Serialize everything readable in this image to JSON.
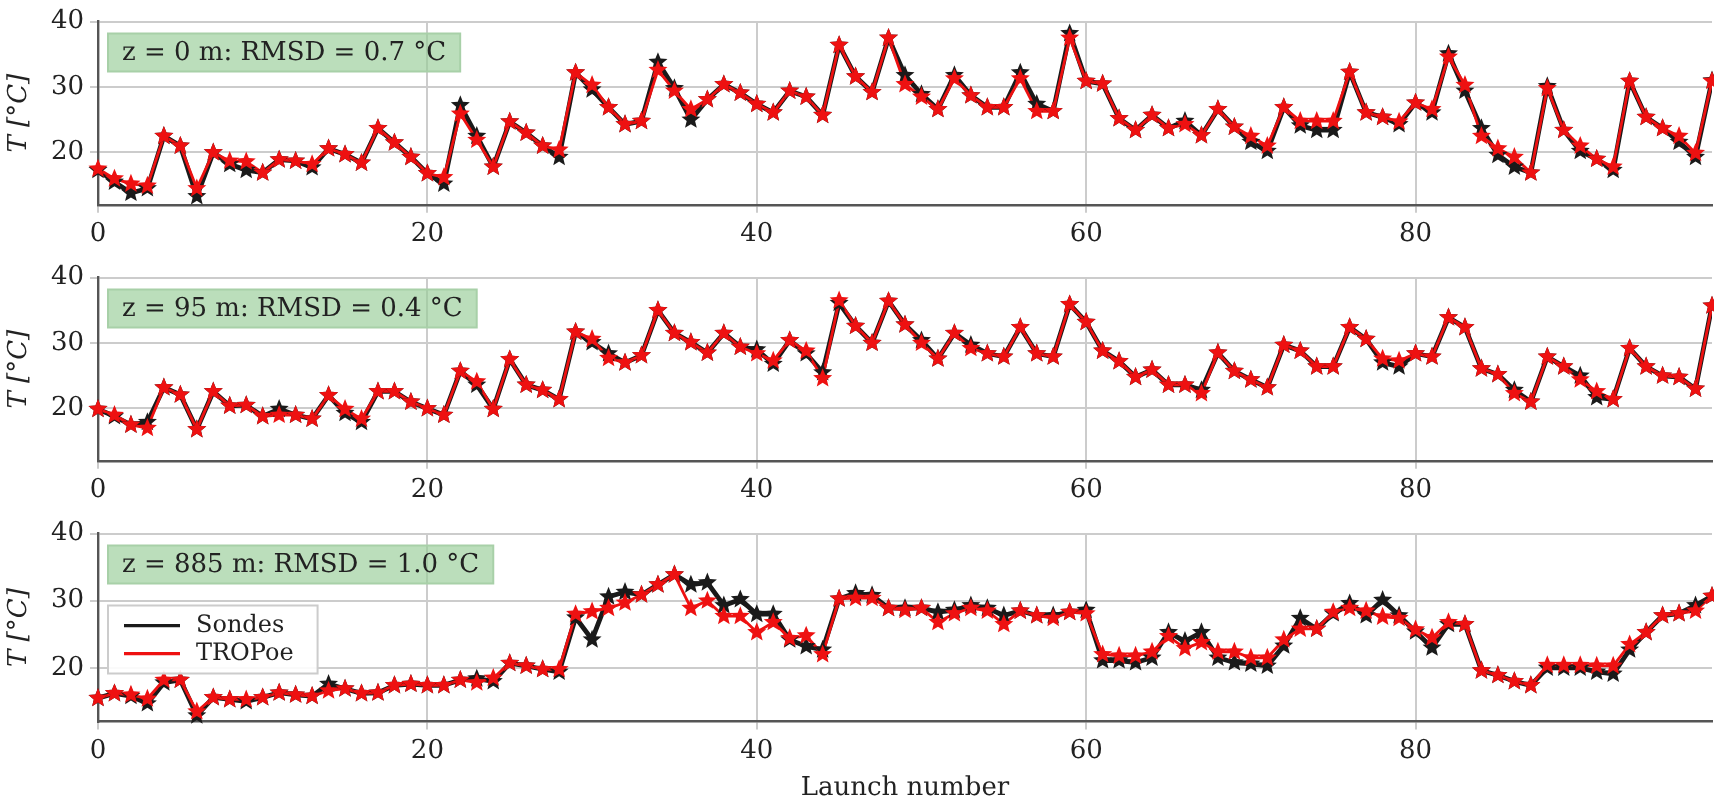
{
  "chart_data": [
    {
      "type": "line",
      "annotations": [
        "z = 0 m: RMSD = 0.7 °C"
      ],
      "ylabel": "T [°C]",
      "xlim": [
        0,
        98
      ],
      "ylim": [
        12,
        40
      ],
      "xticks": [
        0,
        20,
        40,
        60,
        80
      ],
      "yticks": [
        20,
        30,
        40
      ],
      "grid": true,
      "marker": "star",
      "line_style": "solid",
      "x": [
        0,
        1,
        2,
        3,
        4,
        5,
        6,
        7,
        8,
        9,
        10,
        11,
        12,
        13,
        14,
        15,
        16,
        17,
        18,
        19,
        20,
        21,
        22,
        23,
        24,
        25,
        26,
        27,
        28,
        29,
        30,
        31,
        32,
        33,
        34,
        35,
        36,
        37,
        38,
        39,
        40,
        41,
        42,
        43,
        44,
        45,
        46,
        47,
        48,
        49,
        50,
        51,
        52,
        53,
        54,
        55,
        56,
        57,
        58,
        59,
        60,
        61,
        62,
        63,
        64,
        65,
        66,
        67,
        68,
        69,
        70,
        71,
        72,
        73,
        74,
        75,
        76,
        77,
        78,
        79,
        80,
        81,
        82,
        83,
        84,
        85,
        86,
        87,
        88,
        89,
        90,
        91,
        92,
        93,
        94,
        95,
        96,
        97,
        98
      ],
      "series": [
        {
          "color": "#1a1a1a",
          "values": [
            17.3,
            15.5,
            13.8,
            14.5,
            22.5,
            21,
            13.3,
            20,
            18.2,
            17.3,
            16.9,
            18.9,
            18.7,
            17.7,
            20.6,
            19.7,
            18.4,
            23.7,
            21.5,
            19.3,
            16.8,
            15.2,
            27.2,
            22.5,
            17.8,
            24.7,
            23,
            21,
            19.3,
            32.2,
            29.6,
            26.9,
            24.3,
            24.8,
            33.8,
            29.8,
            25,
            28.1,
            30.4,
            29.1,
            27.4,
            26.1,
            29.4,
            28.5,
            25.7,
            36.4,
            31.6,
            29.2,
            37.5,
            31.8,
            28.9,
            26.6,
            31.8,
            28.7,
            26.9,
            26.9,
            32.2,
            27.4,
            26.3,
            38.2,
            30.9,
            30.5,
            25.2,
            23.4,
            25.7,
            23.7,
            24.8,
            22.6,
            26.6,
            23.9,
            21.6,
            20.2,
            26.9,
            24.1,
            23.4,
            23.4,
            32.3,
            26.1,
            25.4,
            24.3,
            27.6,
            26.1,
            35.1,
            29.4,
            23.7,
            19.6,
            17.8,
            16.9,
            30.1,
            23.4,
            20.2,
            19,
            17.3,
            30.9,
            25.4,
            23.7,
            21.6,
            19.3,
            31
          ]
        },
        {
          "color": "#ee1111",
          "values": [
            17.5,
            16.0,
            15.2,
            14.9,
            22.5,
            21,
            14.5,
            20,
            18.7,
            18.6,
            16.9,
            18.9,
            18.7,
            18.2,
            20.6,
            19.7,
            18.4,
            23.7,
            21.5,
            19.3,
            16.8,
            16.2,
            25.9,
            21.9,
            17.8,
            24.7,
            23,
            21,
            20.4,
            32.2,
            30.3,
            26.9,
            24.3,
            24.8,
            32.6,
            29.4,
            26.6,
            28.1,
            30.4,
            29.1,
            27.4,
            26.1,
            29.4,
            28.5,
            25.7,
            36.4,
            31.6,
            29.2,
            37.5,
            30.4,
            28.5,
            26.6,
            31.3,
            28.7,
            26.9,
            26.9,
            31.3,
            26.3,
            26.3,
            37.5,
            30.9,
            30.5,
            25.2,
            23.4,
            25.7,
            23.7,
            24.3,
            22.6,
            26.6,
            23.9,
            22.5,
            21,
            26.9,
            24.8,
            24.8,
            24.8,
            32.3,
            26.1,
            25.4,
            24.7,
            27.6,
            26.6,
            34.6,
            30.3,
            22.5,
            20.6,
            19.3,
            16.9,
            29.8,
            23.4,
            21,
            19,
            17.8,
            30.9,
            25.4,
            23.7,
            22.5,
            19.9,
            30.9
          ]
        }
      ]
    },
    {
      "type": "line",
      "annotations": [
        "z = 95 m: RMSD = 0.4 °C"
      ],
      "ylabel": "T [°C]",
      "xlim": [
        0,
        98
      ],
      "ylim": [
        12,
        40
      ],
      "xticks": [
        0,
        20,
        40,
        60,
        80
      ],
      "yticks": [
        20,
        30,
        40
      ],
      "grid": true,
      "marker": "star",
      "line_style": "solid",
      "x": [
        0,
        1,
        2,
        3,
        4,
        5,
        6,
        7,
        8,
        9,
        10,
        11,
        12,
        13,
        14,
        15,
        16,
        17,
        18,
        19,
        20,
        21,
        22,
        23,
        24,
        25,
        26,
        27,
        28,
        29,
        30,
        31,
        32,
        33,
        34,
        35,
        36,
        37,
        38,
        39,
        40,
        41,
        42,
        43,
        44,
        45,
        46,
        47,
        48,
        49,
        50,
        51,
        52,
        53,
        54,
        55,
        56,
        57,
        58,
        59,
        60,
        61,
        62,
        63,
        64,
        65,
        66,
        67,
        68,
        69,
        70,
        71,
        72,
        73,
        74,
        75,
        76,
        77,
        78,
        79,
        80,
        81,
        82,
        83,
        84,
        85,
        86,
        87,
        88,
        89,
        90,
        91,
        92,
        93,
        94,
        95,
        96,
        97,
        98
      ],
      "series": [
        {
          "color": "#1a1a1a",
          "values": [
            19.9,
            18.8,
            17.5,
            17.9,
            23.2,
            22.1,
            16.8,
            22.6,
            20.4,
            20.5,
            18.8,
            19.9,
            19,
            18.4,
            22,
            19.3,
            17.9,
            22.6,
            22.6,
            21,
            20,
            19,
            25.7,
            23.6,
            19.9,
            27.5,
            23.6,
            22.8,
            21.4,
            31.7,
            30.1,
            28.4,
            27,
            28.1,
            35,
            31.5,
            30.1,
            28.5,
            31.5,
            29.4,
            29,
            26.8,
            30.4,
            28.4,
            25.5,
            36.1,
            32.6,
            30,
            36.4,
            32.8,
            30.4,
            27.6,
            31.5,
            29.7,
            28.4,
            27.9,
            32.4,
            28.4,
            27.9,
            35.9,
            33.2,
            28.8,
            27.2,
            24.8,
            25.9,
            23.6,
            23.6,
            22.8,
            28.5,
            25.7,
            24.4,
            23.2,
            29.7,
            28.8,
            26.4,
            26.4,
            32.4,
            30.6,
            27,
            26.4,
            28.4,
            27.9,
            33.9,
            32.4,
            26.1,
            25.2,
            22.8,
            21,
            27.9,
            26.4,
            25,
            21.7,
            21.4,
            29.2,
            26.4,
            25,
            24.8,
            23,
            35.7
          ]
        },
        {
          "color": "#ee1111",
          "values": [
            19.9,
            19,
            17.5,
            17,
            23.2,
            22.1,
            16.8,
            22.6,
            20.4,
            20.5,
            18.8,
            19,
            19,
            18.4,
            22,
            19.9,
            18.4,
            22.6,
            22.6,
            21,
            20,
            19,
            25.7,
            24.1,
            19.9,
            27.5,
            23.6,
            22.8,
            21.4,
            31.7,
            30.6,
            27.7,
            27,
            28.1,
            35,
            31.5,
            30.1,
            28.5,
            31.5,
            29.4,
            28.4,
            27.3,
            30.4,
            28.8,
            24.6,
            36.5,
            32.6,
            30,
            36.4,
            32.8,
            30,
            27.6,
            31.5,
            29.2,
            28.4,
            27.9,
            32.4,
            28.4,
            27.9,
            35.9,
            33.2,
            28.8,
            27.2,
            24.8,
            25.9,
            23.6,
            23.6,
            22.3,
            28.5,
            25.7,
            24.4,
            23.2,
            29.7,
            28.8,
            26.4,
            26.4,
            32.4,
            30.6,
            27.6,
            27.3,
            28.4,
            27.9,
            33.9,
            32.4,
            26.1,
            25.2,
            22.3,
            21,
            27.9,
            26.4,
            24.4,
            22.6,
            21.4,
            29.2,
            26.4,
            25,
            24.8,
            23,
            35.7
          ]
        }
      ]
    },
    {
      "type": "line",
      "annotations": [
        "z = 885 m: RMSD = 1.0 °C"
      ],
      "ylabel": "T [°C]",
      "xlabel": "Launch number",
      "xlim": [
        0,
        98
      ],
      "ylim": [
        12,
        40
      ],
      "xticks": [
        0,
        20,
        40,
        60,
        80
      ],
      "yticks": [
        20,
        30,
        40
      ],
      "grid": true,
      "marker": "star",
      "line_style": "solid",
      "legend": "left",
      "x": [
        0,
        1,
        2,
        3,
        4,
        5,
        6,
        7,
        8,
        9,
        10,
        11,
        12,
        13,
        14,
        15,
        16,
        17,
        18,
        19,
        20,
        21,
        22,
        23,
        24,
        25,
        26,
        27,
        28,
        29,
        30,
        31,
        32,
        33,
        34,
        35,
        36,
        37,
        38,
        39,
        40,
        41,
        42,
        43,
        44,
        45,
        46,
        47,
        48,
        49,
        50,
        51,
        52,
        53,
        54,
        55,
        56,
        57,
        58,
        59,
        60,
        61,
        62,
        63,
        64,
        65,
        66,
        67,
        68,
        69,
        70,
        71,
        72,
        73,
        74,
        75,
        76,
        77,
        78,
        79,
        80,
        81,
        82,
        83,
        84,
        85,
        86,
        87,
        88,
        89,
        90,
        91,
        92,
        93,
        94,
        95,
        96,
        97,
        98
      ],
      "series": [
        {
          "name": "Sondes",
          "color": "#1a1a1a",
          "values": [
            15.5,
            16.2,
            15.8,
            14.7,
            17.8,
            18.2,
            12.9,
            15.6,
            15.3,
            15,
            15.6,
            16.3,
            16,
            15.8,
            17.6,
            16.9,
            16.2,
            16.3,
            17.4,
            17.6,
            17.4,
            17.4,
            18.2,
            18.4,
            18,
            20.7,
            20.3,
            19.8,
            19.4,
            27.5,
            24.2,
            30.6,
            31.3,
            30.9,
            32.4,
            33.9,
            32.4,
            32.7,
            29.3,
            30.2,
            28,
            28,
            24.2,
            23.2,
            22.7,
            30.3,
            31.1,
            30.8,
            28.9,
            28.9,
            28.9,
            28.3,
            28.6,
            29.3,
            28.9,
            27.8,
            28.5,
            27.8,
            27.8,
            28.3,
            28.6,
            21.1,
            21.1,
            20.8,
            21.5,
            25.3,
            24,
            25.3,
            21.5,
            20.8,
            20.6,
            20.3,
            23.3,
            27.4,
            25.8,
            28.1,
            29.6,
            27.8,
            30.1,
            27.8,
            25.4,
            23,
            26.5,
            26.5,
            19.6,
            18.9,
            18,
            17.4,
            20,
            20,
            20,
            19.4,
            19.1,
            22.7,
            25.3,
            27.8,
            28.1,
            29.3,
            30.7
          ]
        },
        {
          "name": "TROPoe",
          "color": "#ee1111",
          "values": [
            15.5,
            16.2,
            16,
            15.4,
            18.2,
            18.2,
            13.5,
            15.6,
            15.3,
            15.3,
            15.6,
            16.3,
            16,
            15.8,
            16.6,
            16.9,
            16.2,
            16.3,
            17.4,
            17.6,
            17.4,
            17.4,
            18.2,
            17.8,
            18.5,
            20.7,
            20.3,
            19.8,
            19.8,
            28,
            28.4,
            28.9,
            29.7,
            30.9,
            32.4,
            33.9,
            28.9,
            30,
            27.7,
            27.7,
            25.3,
            26.8,
            24.4,
            24.8,
            22,
            30.3,
            30.4,
            30.4,
            28.9,
            28.6,
            28.9,
            26.8,
            28.1,
            28.9,
            28.5,
            26.5,
            28.5,
            27.8,
            27.4,
            28.3,
            28.1,
            22,
            21.8,
            21.8,
            22.4,
            24.7,
            22.9,
            23.8,
            22.4,
            22.4,
            21.5,
            21.5,
            24.2,
            25.8,
            25.8,
            28.3,
            28.9,
            28.5,
            27.6,
            27.4,
            25.7,
            24.5,
            26.8,
            26.5,
            19.6,
            18.9,
            18,
            17.4,
            20.4,
            20.4,
            20.4,
            20.3,
            20.3,
            23.5,
            25.3,
            27.8,
            28.1,
            28.5,
            30.7
          ]
        }
      ]
    }
  ]
}
